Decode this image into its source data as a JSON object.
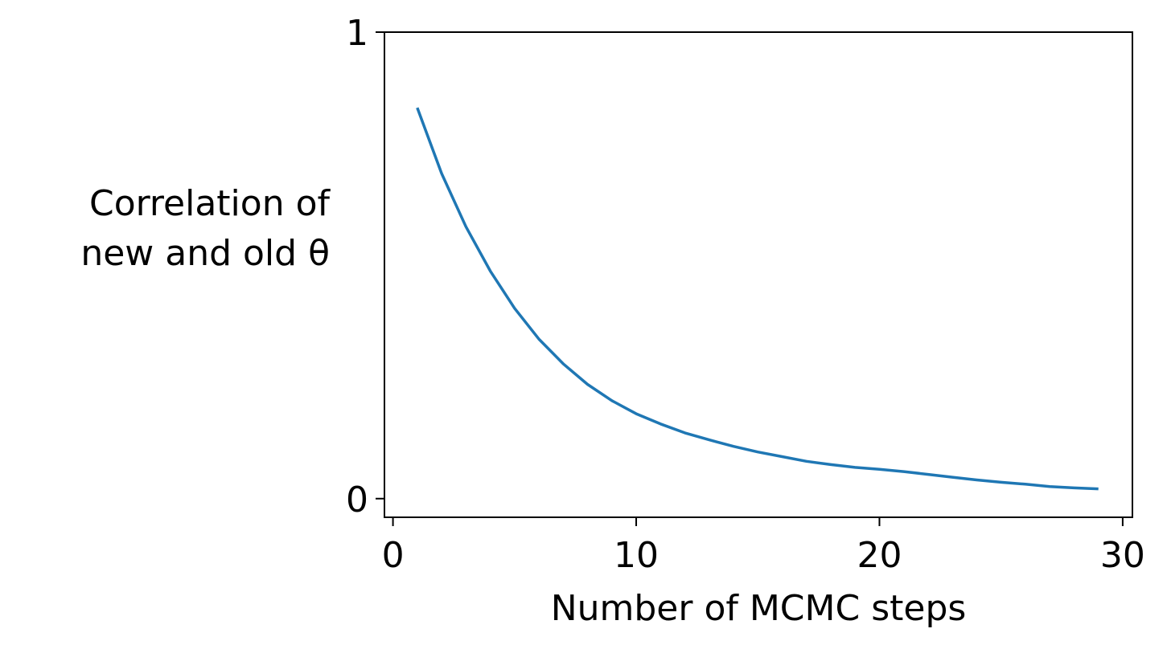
{
  "chart_data": {
    "type": "line",
    "title": "",
    "xlabel": "Number of MCMC steps",
    "ylabel_lines": [
      "Correlation of",
      "new and old θ"
    ],
    "xlim": [
      -0.35,
      30.4
    ],
    "ylim": [
      -0.04,
      1.0
    ],
    "xticks": [
      0,
      10,
      20,
      30
    ],
    "yticks": [
      0,
      1
    ],
    "xtick_labels": [
      "0",
      "10",
      "20",
      "30"
    ],
    "ytick_labels": [
      "0",
      "1"
    ],
    "grid": false,
    "legend": "none",
    "series": [
      {
        "color": "#1f77b4",
        "x": [
          1,
          2,
          3,
          4,
          5,
          6,
          7,
          8,
          9,
          10,
          11,
          12,
          13,
          14,
          15,
          16,
          17,
          18,
          19,
          20,
          21,
          22,
          23,
          24,
          25,
          26,
          27,
          28,
          29
        ],
        "y": [
          0.838,
          0.697,
          0.583,
          0.488,
          0.408,
          0.342,
          0.289,
          0.245,
          0.21,
          0.182,
          0.16,
          0.141,
          0.126,
          0.112,
          0.1,
          0.09,
          0.08,
          0.073,
          0.067,
          0.063,
          0.058,
          0.052,
          0.046,
          0.04,
          0.035,
          0.031,
          0.026,
          0.023,
          0.021
        ]
      }
    ]
  }
}
